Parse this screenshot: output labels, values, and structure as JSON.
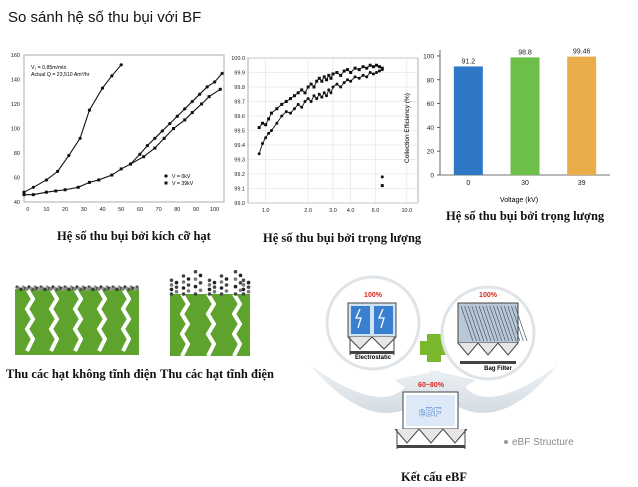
{
  "page": {
    "title": "So sánh hệ số thu bụi với BF",
    "captions": {
      "chart1": "Hệ số thu bụi bởi kích cỡ hạt",
      "chart2": "Hệ số thu bụi bởi trọng lượng",
      "chart3": "Hệ số thu bụi bởi trọng lượng",
      "noncharged": "Thu các hạt không tĩnh điện",
      "charged": "Thu các hạt tĩnh điện",
      "ebf": "Kết cấu eBF"
    },
    "diagram": {
      "electrostatic_label": "Electrostatic",
      "electrostatic_pct": "100%",
      "bagfilter_label": "Bag Filter",
      "bagfilter_pct": "100%",
      "ebf_label": "eBF",
      "ebf_pct": "60~80%",
      "structure_label": "eBF Structure",
      "colors": {
        "red": "#d9261c",
        "green": "#7cb82e",
        "blue": "#2f6ec6",
        "arrow": "#d6dfe6"
      }
    }
  },
  "chart_data": [
    {
      "type": "line",
      "annotation": [
        "V₁ = 0.85m/min",
        "Actual Q = 23,510 Am³/hr"
      ],
      "x_ticks": [
        0,
        10,
        20,
        30,
        40,
        50,
        60,
        70,
        80,
        90,
        100
      ],
      "y_ticks": [
        40,
        60,
        80,
        100,
        120,
        140,
        160
      ],
      "xlim": [
        -2,
        105
      ],
      "ylim": [
        40,
        160
      ],
      "series": [
        {
          "name": "V = 0kV",
          "marker": "circle",
          "x": [
            -2,
            3,
            10,
            16,
            22,
            28,
            33,
            40,
            45,
            50
          ],
          "y": [
            48,
            52,
            58,
            65,
            78,
            92,
            115,
            133,
            143,
            152
          ]
        },
        {
          "name": "V = 39kV",
          "marker": "square",
          "x": [
            -2,
            3,
            10,
            15,
            20,
            27,
            33,
            38,
            45,
            50,
            55,
            62,
            68,
            73,
            78,
            84,
            88,
            93,
            97,
            103
          ],
          "y": [
            46,
            46,
            48,
            49,
            50,
            52,
            56,
            58,
            62,
            67,
            71,
            77,
            84,
            92,
            100,
            107,
            113,
            120,
            126,
            132
          ]
        }
      ],
      "extra_series_points": {
        "series": "V = 0kV",
        "x": [
          55,
          60,
          64,
          68,
          72,
          76,
          80,
          84,
          88,
          92,
          96,
          100,
          104
        ],
        "y": [
          71,
          79,
          86,
          92,
          98,
          104,
          110,
          116,
          122,
          128,
          134,
          138,
          145
        ]
      },
      "legend": "bottom-right"
    },
    {
      "type": "line",
      "x_ticks": [
        "1.0",
        "2.0",
        "3.0",
        "4.0",
        "6.0",
        "10.0"
      ],
      "x_tick_values": [
        1.0,
        2.0,
        3.0,
        4.0,
        6.0,
        10.0
      ],
      "xscale": "log",
      "y_ticks": [
        "99.0",
        "99.1",
        "99.2",
        "99.3",
        "99.4",
        "99.5",
        "99.6",
        "99.7",
        "99.8",
        "99.9",
        "100.0"
      ],
      "xlim": [
        0.75,
        12
      ],
      "ylim": [
        99.0,
        100.0
      ],
      "series": [
        {
          "name": "",
          "marker": "square",
          "x": [
            0.9,
            0.95,
            1.0,
            1.05,
            1.1,
            1.2,
            1.3,
            1.4,
            1.5,
            1.6,
            1.7,
            1.8,
            1.9,
            2.0,
            2.1,
            2.2,
            2.3,
            2.4,
            2.5,
            2.6,
            2.7,
            2.8,
            2.9,
            3.0,
            3.2,
            3.4,
            3.6,
            3.8,
            4.0,
            4.3,
            4.6,
            4.9,
            5.2,
            5.5,
            5.8,
            6.1,
            6.4,
            6.7
          ],
          "y": [
            99.52,
            99.55,
            99.54,
            99.58,
            99.62,
            99.65,
            99.68,
            99.7,
            99.72,
            99.74,
            99.76,
            99.78,
            99.76,
            99.8,
            99.82,
            99.8,
            99.84,
            99.86,
            99.84,
            99.87,
            99.85,
            99.88,
            99.86,
            99.89,
            99.9,
            99.88,
            99.91,
            99.92,
            99.9,
            99.93,
            99.92,
            99.94,
            99.93,
            99.95,
            99.94,
            99.95,
            99.94,
            99.93
          ]
        },
        {
          "name": "",
          "marker": "circle",
          "x": [
            0.9,
            0.95,
            1.0,
            1.05,
            1.1,
            1.2,
            1.3,
            1.4,
            1.5,
            1.6,
            1.7,
            1.8,
            1.9,
            2.0,
            2.1,
            2.2,
            2.3,
            2.4,
            2.5,
            2.6,
            2.7,
            2.8,
            2.9,
            3.0,
            3.2,
            3.4,
            3.6,
            3.8,
            4.0,
            4.3,
            4.6,
            4.9,
            5.2,
            5.5,
            5.8,
            6.1,
            6.4,
            6.7
          ],
          "y": [
            99.34,
            99.41,
            99.45,
            99.48,
            99.5,
            99.55,
            99.6,
            99.63,
            99.62,
            99.65,
            99.68,
            99.66,
            99.7,
            99.72,
            99.7,
            99.74,
            99.72,
            99.75,
            99.73,
            99.76,
            99.74,
            99.78,
            99.76,
            99.8,
            99.82,
            99.8,
            99.83,
            99.85,
            99.84,
            99.87,
            99.86,
            99.88,
            99.87,
            99.9,
            99.89,
            99.9,
            99.91,
            99.92
          ]
        }
      ],
      "extra_points": [
        {
          "x": 6.7,
          "y": 99.18,
          "marker": "circle"
        },
        {
          "x": 6.7,
          "y": 99.12,
          "marker": "square"
        }
      ]
    },
    {
      "type": "bar",
      "categories": [
        "0",
        "30",
        "39"
      ],
      "values": [
        91.2,
        98.8,
        99.46
      ],
      "value_labels": [
        "91.2",
        "98.8",
        "99.46"
      ],
      "colors": [
        "#2e78c7",
        "#6cc04a",
        "#e9ad4a"
      ],
      "xlabel": "Voltage (kV)",
      "ylabel": "Collection Efficiency (%)",
      "y_ticks": [
        0,
        20,
        40,
        60,
        80,
        100
      ],
      "ylim": [
        0,
        105
      ]
    }
  ]
}
